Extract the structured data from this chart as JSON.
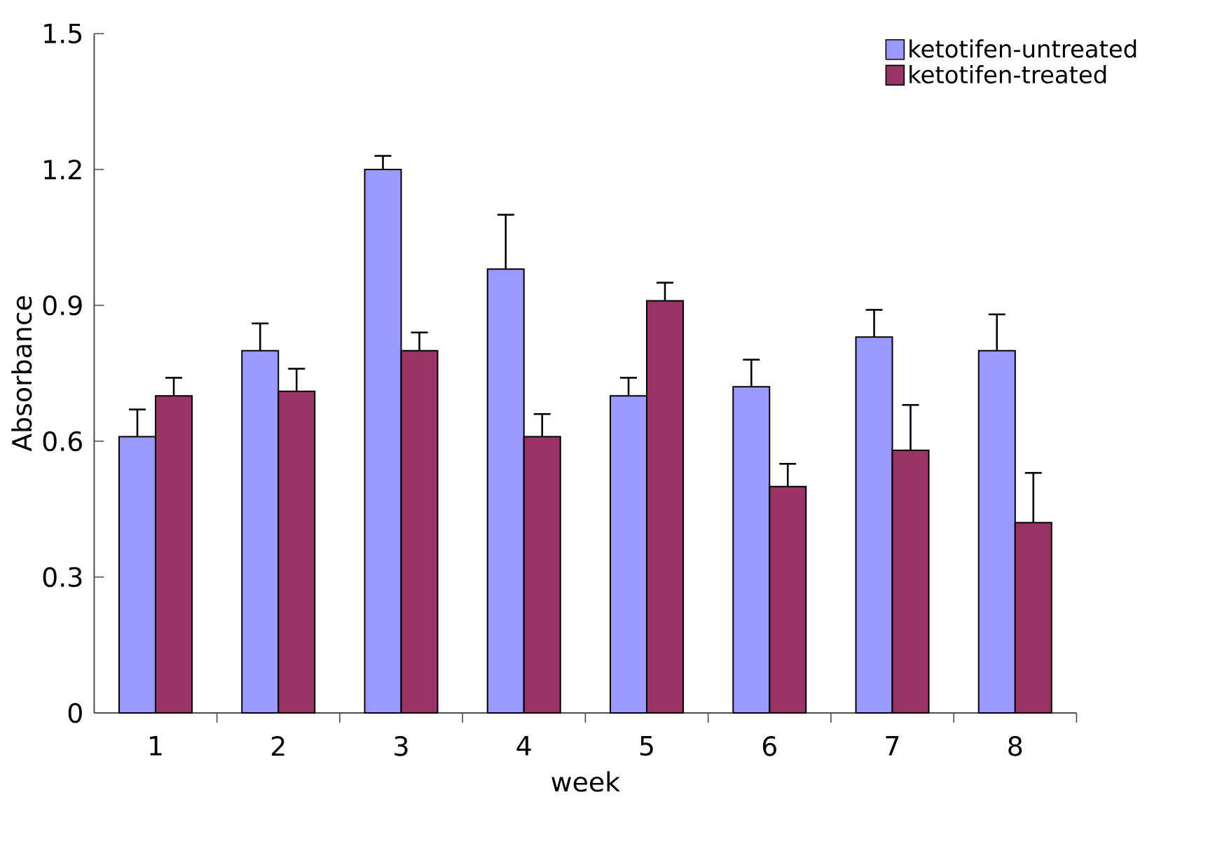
{
  "chart_data": {
    "type": "bar",
    "xlabel": "week",
    "ylabel": "Absorbance",
    "categories": [
      "1",
      "2",
      "3",
      "4",
      "5",
      "6",
      "7",
      "8"
    ],
    "series": [
      {
        "name": "ketotifen-untreated",
        "color": "#9999ff",
        "values": [
          0.61,
          0.8,
          1.2,
          0.98,
          0.7,
          0.72,
          0.83,
          0.8
        ],
        "errors": [
          [
            0.61,
            0.67
          ],
          [
            0.8,
            0.86
          ],
          [
            1.2,
            1.23
          ],
          [
            0.98,
            1.1
          ],
          [
            0.7,
            0.74
          ],
          [
            0.72,
            0.78
          ],
          [
            0.83,
            0.89
          ],
          [
            0.8,
            0.88
          ]
        ]
      },
      {
        "name": "ketotifen-treated",
        "color": "#993366",
        "values": [
          0.7,
          0.71,
          0.8,
          0.61,
          0.91,
          0.5,
          0.58,
          0.42
        ],
        "errors": [
          [
            0.7,
            0.74
          ],
          [
            0.71,
            0.76
          ],
          [
            0.8,
            0.84
          ],
          [
            0.61,
            0.66
          ],
          [
            0.91,
            0.95
          ],
          [
            0.5,
            0.55
          ],
          [
            0.58,
            0.68
          ],
          [
            0.42,
            0.53
          ]
        ]
      }
    ],
    "ylim": [
      0,
      1.5
    ],
    "yticks": [
      0,
      0.3,
      0.6,
      0.9,
      1.2,
      1.5
    ],
    "legend": "top right"
  }
}
